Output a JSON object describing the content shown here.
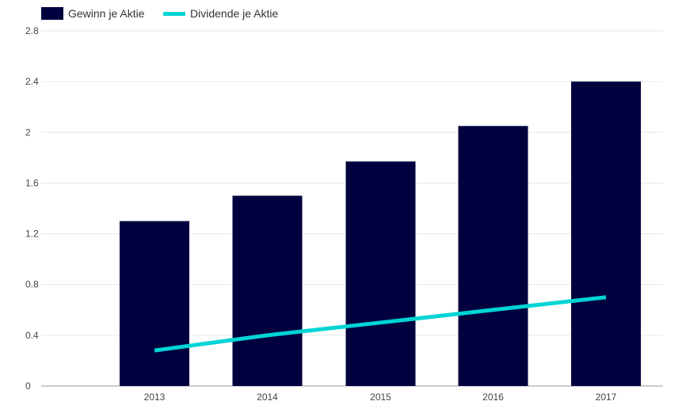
{
  "chart_data": {
    "type": "bar",
    "categories": [
      "2013",
      "2014",
      "2015",
      "2016",
      "2017"
    ],
    "series": [
      {
        "name": "Gewinn je Aktie",
        "type": "bar",
        "color": "#00003f",
        "values": [
          1.3,
          1.5,
          1.77,
          2.05,
          2.4
        ]
      },
      {
        "name": "Dividende je Aktie",
        "type": "line",
        "color": "#00d4d4",
        "values": [
          0.28,
          0.4,
          0.5,
          0.6,
          0.7
        ]
      }
    ],
    "y_ticks": [
      "0",
      "0.4",
      "0.8",
      "1.2",
      "1.6",
      "2",
      "2.4",
      "2.8"
    ],
    "ylim": [
      0,
      2.8
    ],
    "grid": true,
    "legend_position": "top-left"
  }
}
